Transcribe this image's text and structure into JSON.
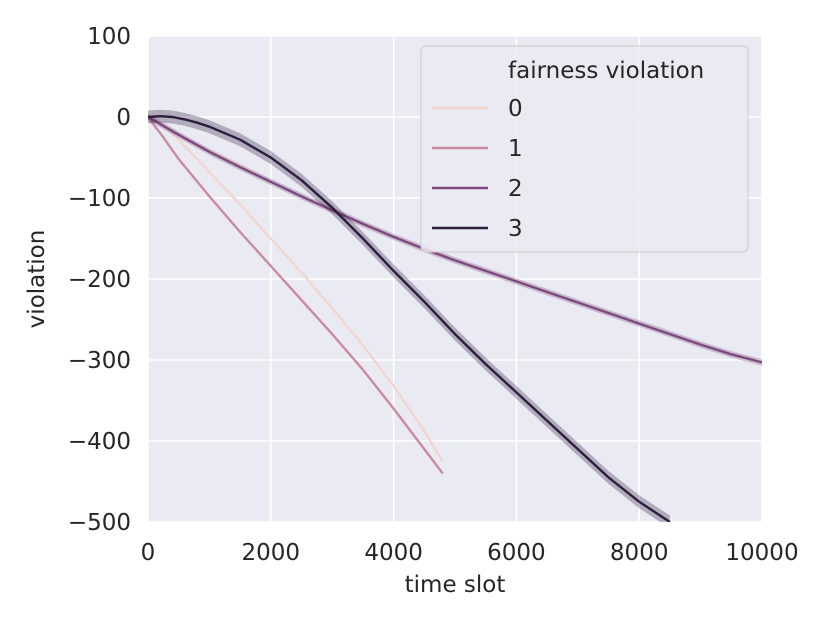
{
  "chart_data": {
    "type": "line",
    "title": "",
    "xlabel": "time slot",
    "ylabel": "violation",
    "xlim": [
      0,
      10000
    ],
    "ylim": [
      -500,
      100
    ],
    "xticks": [
      "0",
      "2000",
      "4000",
      "6000",
      "8000",
      "10000"
    ],
    "yticks": [
      "100",
      "0",
      "−100",
      "−200",
      "−300",
      "−400",
      "−500"
    ],
    "grid": true,
    "background": "#eaeaf2",
    "legend": {
      "title": "fairness violation",
      "placement": "top-right"
    },
    "series": [
      {
        "name": "0",
        "color": "#f2d5cf",
        "band": 1.5,
        "points": [
          [
            0,
            0
          ],
          [
            250,
            -10
          ],
          [
            500,
            -28
          ],
          [
            1000,
            -68
          ],
          [
            1500,
            -108
          ],
          [
            2000,
            -150
          ],
          [
            2500,
            -192
          ],
          [
            3000,
            -236
          ],
          [
            3500,
            -282
          ],
          [
            4000,
            -332
          ],
          [
            4500,
            -388
          ],
          [
            4800,
            -425
          ]
        ]
      },
      {
        "name": "1",
        "color": "#c98ba3",
        "band": 2,
        "points": [
          [
            0,
            0
          ],
          [
            250,
            -25
          ],
          [
            500,
            -52
          ],
          [
            1000,
            -98
          ],
          [
            1500,
            -142
          ],
          [
            2000,
            -184
          ],
          [
            2500,
            -226
          ],
          [
            3000,
            -268
          ],
          [
            3500,
            -312
          ],
          [
            4000,
            -360
          ],
          [
            4500,
            -410
          ],
          [
            4800,
            -440
          ]
        ]
      },
      {
        "name": "2",
        "color": "#7e4a7e",
        "band": 4,
        "points": [
          [
            0,
            0
          ],
          [
            500,
            -22
          ],
          [
            1000,
            -43
          ],
          [
            1500,
            -62
          ],
          [
            2000,
            -80
          ],
          [
            2500,
            -98
          ],
          [
            3000,
            -115
          ],
          [
            3500,
            -132
          ],
          [
            4000,
            -148
          ],
          [
            4500,
            -163
          ],
          [
            5000,
            -177
          ],
          [
            5500,
            -190
          ],
          [
            6000,
            -203
          ],
          [
            6500,
            -216
          ],
          [
            7000,
            -229
          ],
          [
            7500,
            -242
          ],
          [
            8000,
            -255
          ],
          [
            8500,
            -268
          ],
          [
            9000,
            -281
          ],
          [
            9500,
            -293
          ],
          [
            10000,
            -303
          ]
        ]
      },
      {
        "name": "3",
        "color": "#2d1e3e",
        "band": 8,
        "points": [
          [
            0,
            0
          ],
          [
            200,
            1
          ],
          [
            400,
            0
          ],
          [
            600,
            -3
          ],
          [
            800,
            -7
          ],
          [
            1000,
            -12
          ],
          [
            1500,
            -28
          ],
          [
            2000,
            -50
          ],
          [
            2500,
            -78
          ],
          [
            3000,
            -112
          ],
          [
            3500,
            -150
          ],
          [
            4000,
            -190
          ],
          [
            4500,
            -228
          ],
          [
            5000,
            -268
          ],
          [
            5500,
            -305
          ],
          [
            6000,
            -340
          ],
          [
            6500,
            -375
          ],
          [
            7000,
            -410
          ],
          [
            7500,
            -445
          ],
          [
            8000,
            -475
          ],
          [
            8500,
            -500
          ]
        ]
      }
    ]
  }
}
